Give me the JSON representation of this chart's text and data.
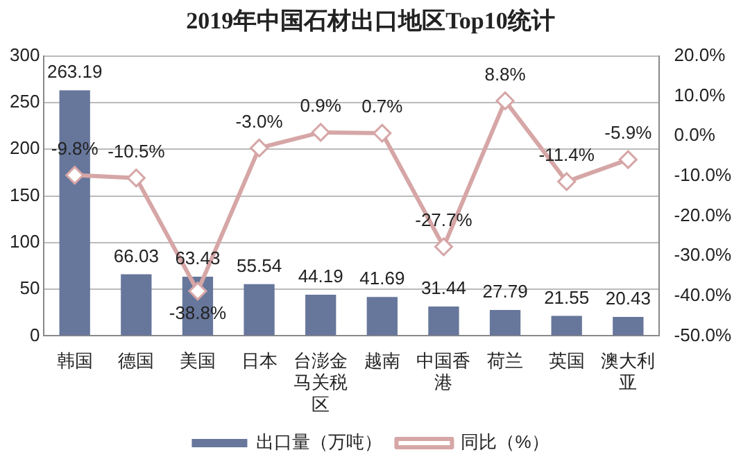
{
  "chart_data": {
    "type": "bar",
    "title": "2019年中国石材出口地区Top10统计",
    "categories": [
      "韩国",
      "德国",
      "美国",
      "日本",
      "台澎金马关税区",
      "越南",
      "中国香港",
      "荷兰",
      "英国",
      "澳大利亚"
    ],
    "series": [
      {
        "name": "出口量（万吨）",
        "color": "#67769b",
        "values": [
          263.19,
          66.03,
          63.43,
          55.54,
          44.19,
          41.69,
          31.44,
          27.79,
          21.55,
          20.43
        ],
        "value_labels": [
          "263.19",
          "66.03",
          "63.43",
          "55.54",
          "44.19",
          "41.69",
          "31.44",
          "27.79",
          "21.55",
          "20.43"
        ]
      },
      {
        "name": "同比（%）",
        "type": "line",
        "axis": "y2",
        "color": "#d6a6a6",
        "marker": "diamond",
        "values": [
          -9.8,
          -10.5,
          -38.8,
          -3.0,
          0.9,
          0.7,
          -27.7,
          8.8,
          -11.4,
          -5.9
        ],
        "value_labels": [
          "-9.8%",
          "-10.5%",
          "-38.8%",
          "-3.0%",
          "0.9%",
          "0.7%",
          "-27.7%",
          "8.8%",
          "-11.4%",
          "-5.9%"
        ]
      }
    ],
    "ylim": [
      0,
      300
    ],
    "yticks": [
      0,
      50,
      100,
      150,
      200,
      250,
      300
    ],
    "y2lim": [
      -50,
      20
    ],
    "y2ticks": [
      {
        "value": -50,
        "label": "-50.0%"
      },
      {
        "value": -40,
        "label": "-40.0%"
      },
      {
        "value": -30,
        "label": "-30.0%"
      },
      {
        "value": -20,
        "label": "-20.0%"
      },
      {
        "value": -10,
        "label": "-10.0%"
      },
      {
        "value": 0,
        "label": "0.0%"
      },
      {
        "value": 10,
        "label": "10.0%"
      },
      {
        "value": 20,
        "label": "20.0%"
      }
    ],
    "grid": "y",
    "legend": "bottom"
  }
}
